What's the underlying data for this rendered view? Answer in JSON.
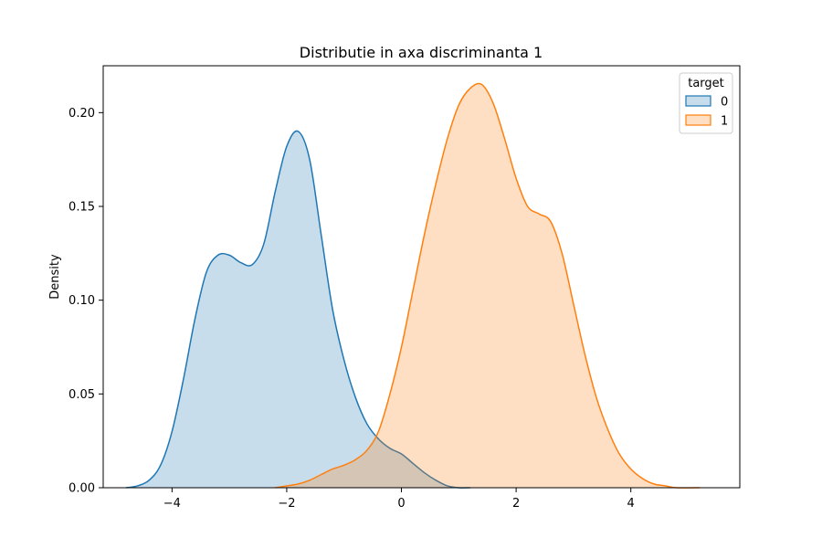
{
  "chart_data": {
    "type": "area",
    "title": "Distributie in axa discriminanta 1",
    "xlabel": "",
    "ylabel": "Density",
    "xlim": [
      -5.2,
      5.9
    ],
    "ylim": [
      0,
      0.225
    ],
    "x_ticks": [
      -4,
      -2,
      0,
      2,
      4
    ],
    "x_tick_labels": [
      "−4",
      "−2",
      "0",
      "2",
      "4"
    ],
    "y_ticks": [
      0.0,
      0.05,
      0.1,
      0.15,
      0.2
    ],
    "y_tick_labels": [
      "0.00",
      "0.05",
      "0.10",
      "0.15",
      "0.20"
    ],
    "grid": false,
    "legend": {
      "title": "target",
      "placement": "top-right"
    },
    "series": [
      {
        "name": "0",
        "color": "#1f77b4",
        "points": [
          [
            -4.8,
            0.0
          ],
          [
            -4.6,
            0.001
          ],
          [
            -4.4,
            0.004
          ],
          [
            -4.2,
            0.012
          ],
          [
            -4.0,
            0.03
          ],
          [
            -3.8,
            0.058
          ],
          [
            -3.6,
            0.09
          ],
          [
            -3.4,
            0.115
          ],
          [
            -3.2,
            0.124
          ],
          [
            -3.0,
            0.124
          ],
          [
            -2.8,
            0.12
          ],
          [
            -2.6,
            0.119
          ],
          [
            -2.4,
            0.13
          ],
          [
            -2.2,
            0.158
          ],
          [
            -2.0,
            0.182
          ],
          [
            -1.8,
            0.19
          ],
          [
            -1.6,
            0.175
          ],
          [
            -1.4,
            0.135
          ],
          [
            -1.2,
            0.095
          ],
          [
            -1.0,
            0.068
          ],
          [
            -0.8,
            0.048
          ],
          [
            -0.6,
            0.034
          ],
          [
            -0.4,
            0.026
          ],
          [
            -0.2,
            0.021
          ],
          [
            0.0,
            0.018
          ],
          [
            0.2,
            0.013
          ],
          [
            0.4,
            0.008
          ],
          [
            0.6,
            0.004
          ],
          [
            0.8,
            0.001
          ],
          [
            1.0,
            0.0
          ],
          [
            1.2,
            0.0
          ]
        ]
      },
      {
        "name": "1",
        "color": "#ff7f0e",
        "points": [
          [
            -2.2,
            0.0
          ],
          [
            -2.0,
            0.001
          ],
          [
            -1.8,
            0.002
          ],
          [
            -1.6,
            0.004
          ],
          [
            -1.4,
            0.007
          ],
          [
            -1.2,
            0.01
          ],
          [
            -1.0,
            0.012
          ],
          [
            -0.8,
            0.015
          ],
          [
            -0.6,
            0.02
          ],
          [
            -0.4,
            0.03
          ],
          [
            -0.2,
            0.05
          ],
          [
            0.0,
            0.075
          ],
          [
            0.2,
            0.105
          ],
          [
            0.4,
            0.135
          ],
          [
            0.6,
            0.162
          ],
          [
            0.8,
            0.186
          ],
          [
            1.0,
            0.204
          ],
          [
            1.2,
            0.213
          ],
          [
            1.4,
            0.215
          ],
          [
            1.6,
            0.205
          ],
          [
            1.8,
            0.186
          ],
          [
            2.0,
            0.165
          ],
          [
            2.2,
            0.15
          ],
          [
            2.4,
            0.146
          ],
          [
            2.6,
            0.142
          ],
          [
            2.8,
            0.125
          ],
          [
            3.0,
            0.098
          ],
          [
            3.2,
            0.071
          ],
          [
            3.4,
            0.048
          ],
          [
            3.6,
            0.031
          ],
          [
            3.8,
            0.018
          ],
          [
            4.0,
            0.01
          ],
          [
            4.2,
            0.005
          ],
          [
            4.4,
            0.002
          ],
          [
            4.6,
            0.001
          ],
          [
            4.8,
            0.0
          ],
          [
            5.2,
            0.0
          ]
        ]
      }
    ]
  }
}
